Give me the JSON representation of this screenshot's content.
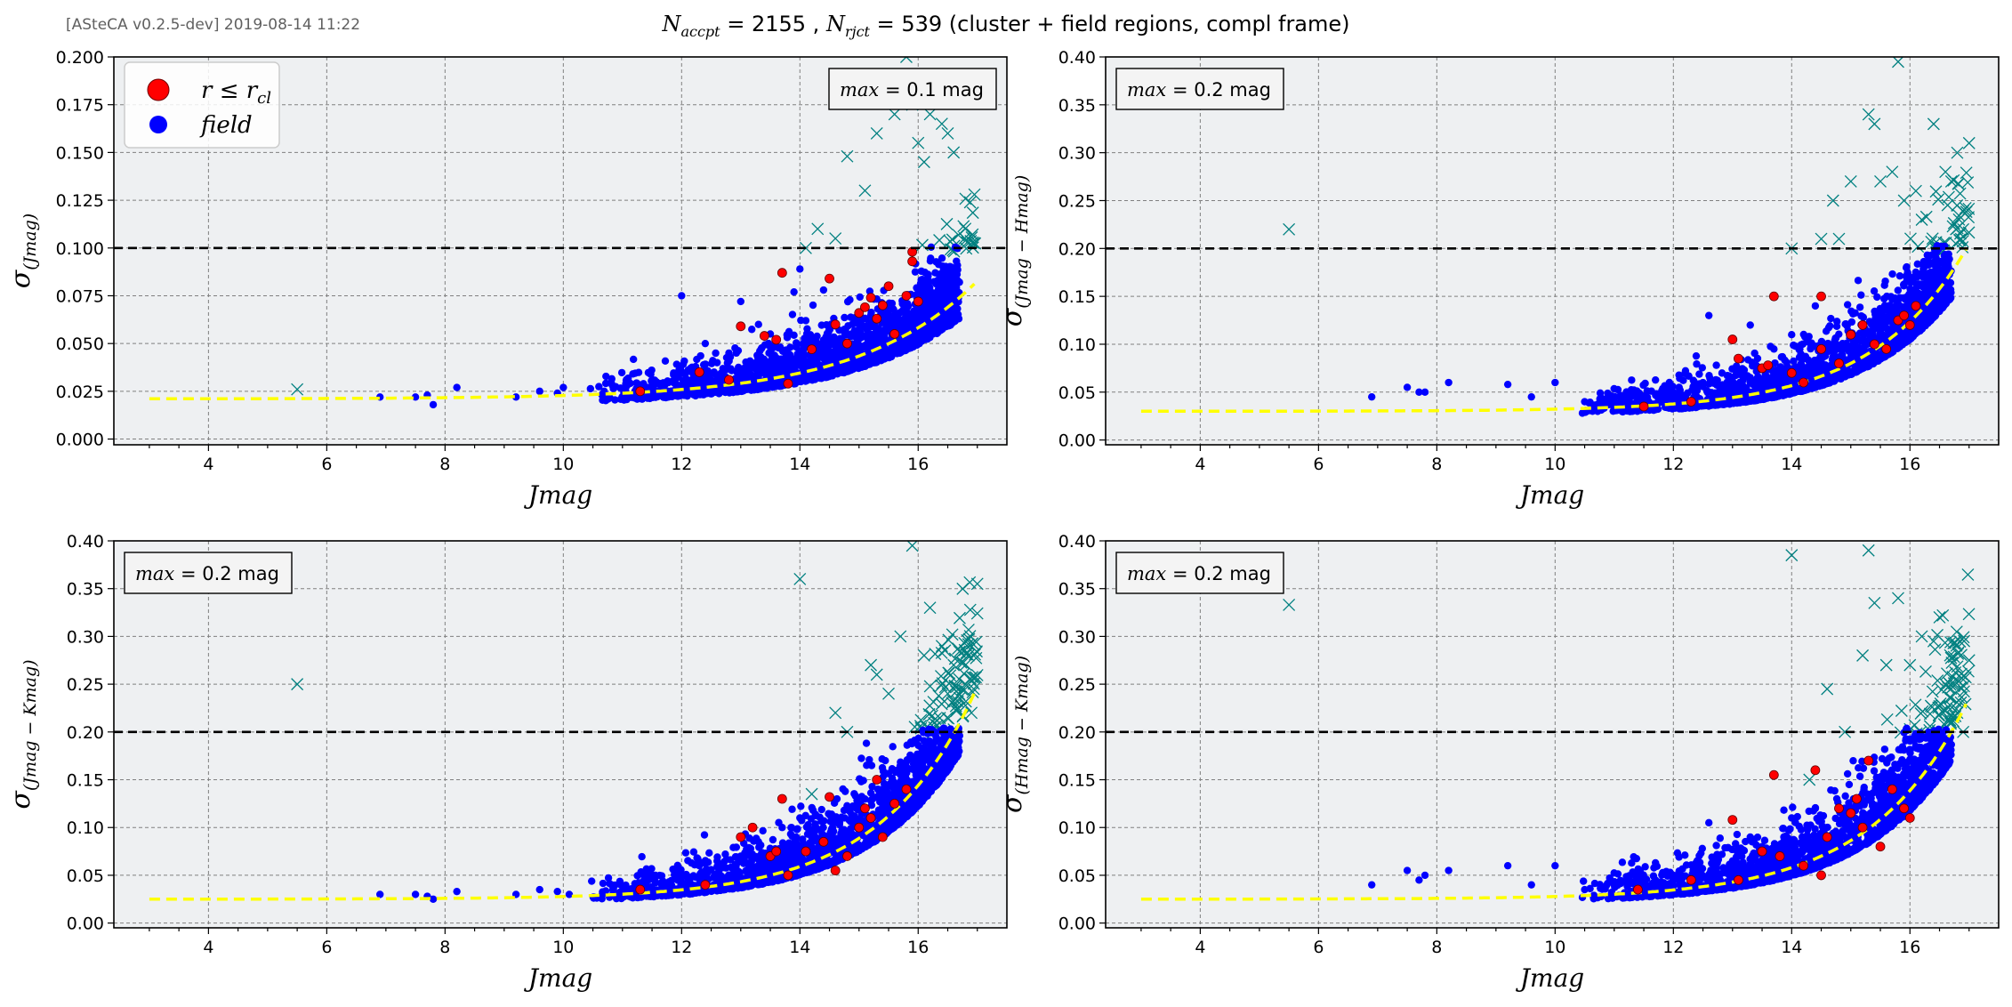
{
  "header": {
    "version": "[ASteCA v0.2.5-dev] 2019-08-14 11:22",
    "title": {
      "n_accpt_sym": "N",
      "n_accpt_sub": "accpt",
      "n_accpt_val": " = 2155 , ",
      "n_rjct_sym": "N",
      "n_rjct_sub": "rjct",
      "n_rjct_val": " = 539",
      "suffix": " (cluster + field regions, compl frame)"
    }
  },
  "legend": {
    "cluster_label": "r ≤ r",
    "cluster_sub": "cl",
    "field_label": "field"
  },
  "colors": {
    "cluster": "#ff0000",
    "field": "#0000ff",
    "rejected": "#008080",
    "fit_curve": "#ffff00",
    "max_line": "#000000",
    "panel_bg": "#eef0f2"
  },
  "chart_data": [
    {
      "type": "scatter",
      "xlabel": "Jmag",
      "ylabel_symbol": "σ",
      "ylabel_sub": "(Jmag)",
      "xlim": [
        2.4,
        17.5
      ],
      "ylim": [
        -0.003,
        0.2
      ],
      "xticks": [
        4,
        6,
        8,
        10,
        12,
        14,
        16
      ],
      "yticks": [
        0.0,
        0.025,
        0.05,
        0.075,
        0.1,
        0.125,
        0.15,
        0.175,
        0.2
      ],
      "ytick_labels": [
        "0.000",
        "0.025",
        "0.050",
        "0.075",
        "0.100",
        "0.125",
        "0.150",
        "0.175",
        "0.200"
      ],
      "grid": true,
      "max_box": {
        "var": "max",
        "text": " = 0.1 mag"
      },
      "max_line": 0.1,
      "fit": {
        "base": 0.021,
        "amp": 0.0018,
        "scale": 1.98,
        "x0": 10,
        "x_start": 3.0,
        "x_end": 17.0
      },
      "cluster_points": [
        [
          11.3,
          0.025
        ],
        [
          12.3,
          0.035
        ],
        [
          12.8,
          0.031
        ],
        [
          13.0,
          0.059
        ],
        [
          13.4,
          0.054
        ],
        [
          13.6,
          0.052
        ],
        [
          13.7,
          0.087
        ],
        [
          13.8,
          0.029
        ],
        [
          14.2,
          0.047
        ],
        [
          14.5,
          0.084
        ],
        [
          14.6,
          0.06
        ],
        [
          14.8,
          0.05
        ],
        [
          15.0,
          0.066
        ],
        [
          15.1,
          0.069
        ],
        [
          15.2,
          0.074
        ],
        [
          15.3,
          0.063
        ],
        [
          15.4,
          0.07
        ],
        [
          15.5,
          0.08
        ],
        [
          15.6,
          0.055
        ],
        [
          15.8,
          0.075
        ],
        [
          15.9,
          0.098
        ],
        [
          16.0,
          0.072
        ],
        [
          15.9,
          0.093
        ]
      ],
      "rejected_points": [
        [
          5.5,
          0.026
        ],
        [
          14.1,
          0.1
        ],
        [
          14.3,
          0.11
        ],
        [
          14.6,
          0.105
        ],
        [
          14.8,
          0.148
        ],
        [
          15.1,
          0.13
        ],
        [
          15.3,
          0.16
        ],
        [
          15.5,
          0.18
        ],
        [
          15.6,
          0.17
        ],
        [
          15.7,
          0.19
        ],
        [
          15.8,
          0.2
        ],
        [
          15.9,
          0.175
        ],
        [
          16.0,
          0.155
        ],
        [
          16.1,
          0.145
        ],
        [
          16.2,
          0.17
        ],
        [
          16.3,
          0.19
        ],
        [
          16.4,
          0.165
        ],
        [
          16.5,
          0.16
        ],
        [
          16.6,
          0.15
        ]
      ],
      "field_clouds": {
        "sigma": 0.0035,
        "x_from": 10.4,
        "x_to": 16.7
      },
      "field_sparse": [
        [
          6.9,
          0.022
        ],
        [
          7.5,
          0.022
        ],
        [
          7.7,
          0.023
        ],
        [
          7.8,
          0.018
        ],
        [
          8.2,
          0.027
        ],
        [
          9.2,
          0.022
        ],
        [
          9.6,
          0.025
        ],
        [
          9.9,
          0.024
        ],
        [
          10.0,
          0.027
        ]
      ],
      "field_scatter": [
        [
          12.0,
          0.075
        ],
        [
          12.4,
          0.05
        ],
        [
          13.0,
          0.072
        ],
        [
          13.3,
          0.06
        ],
        [
          13.9,
          0.077
        ],
        [
          14.0,
          0.089
        ],
        [
          14.4,
          0.078
        ],
        [
          14.1,
          0.062
        ],
        [
          13.5,
          0.055
        ],
        [
          12.8,
          0.045
        ],
        [
          12.6,
          0.04
        ]
      ]
    },
    {
      "type": "scatter",
      "xlabel": "Jmag",
      "ylabel_symbol": "σ",
      "ylabel_sub": "(Jmag − Hmag)",
      "xlim": [
        2.4,
        17.5
      ],
      "ylim": [
        -0.005,
        0.4
      ],
      "xticks": [
        4,
        6,
        8,
        10,
        12,
        14,
        16
      ],
      "yticks": [
        0.0,
        0.05,
        0.1,
        0.15,
        0.2,
        0.25,
        0.3,
        0.35,
        0.4
      ],
      "ytick_labels": [
        "0.00",
        "0.05",
        "0.10",
        "0.15",
        "0.20",
        "0.25",
        "0.30",
        "0.35",
        "0.40"
      ],
      "grid": true,
      "max_box": {
        "var": "max",
        "text": " = 0.2 mag"
      },
      "max_line": 0.2,
      "fit": {
        "base": 0.03,
        "amp": 0.0022,
        "scale": 1.6,
        "x0": 10,
        "x_start": 3.0,
        "x_end": 17.0
      },
      "cluster_points": [
        [
          11.5,
          0.035
        ],
        [
          12.3,
          0.04
        ],
        [
          13.0,
          0.105
        ],
        [
          13.1,
          0.085
        ],
        [
          13.5,
          0.075
        ],
        [
          13.6,
          0.078
        ],
        [
          13.7,
          0.15
        ],
        [
          14.0,
          0.07
        ],
        [
          14.2,
          0.06
        ],
        [
          14.5,
          0.15
        ],
        [
          14.5,
          0.095
        ],
        [
          14.8,
          0.08
        ],
        [
          15.0,
          0.11
        ],
        [
          15.2,
          0.12
        ],
        [
          15.4,
          0.1
        ],
        [
          15.6,
          0.095
        ],
        [
          15.8,
          0.125
        ],
        [
          15.9,
          0.13
        ],
        [
          16.0,
          0.12
        ],
        [
          16.1,
          0.14
        ]
      ],
      "rejected_points": [
        [
          5.5,
          0.22
        ],
        [
          14.0,
          0.2
        ],
        [
          14.5,
          0.21
        ],
        [
          14.7,
          0.25
        ],
        [
          14.8,
          0.21
        ],
        [
          15.0,
          0.27
        ],
        [
          15.3,
          0.34
        ],
        [
          15.4,
          0.33
        ],
        [
          15.5,
          0.27
        ],
        [
          15.7,
          0.28
        ],
        [
          15.8,
          0.395
        ],
        [
          15.9,
          0.25
        ],
        [
          16.1,
          0.26
        ],
        [
          16.2,
          0.23
        ],
        [
          16.4,
          0.33
        ],
        [
          16.6,
          0.28
        ],
        [
          16.7,
          0.27
        ],
        [
          16.8,
          0.3
        ],
        [
          17.0,
          0.31
        ],
        [
          16.9,
          0.22
        ]
      ],
      "field_clouds": {
        "sigma": 0.007,
        "x_from": 10.4,
        "x_to": 16.7
      },
      "field_sparse": [
        [
          6.9,
          0.045
        ],
        [
          7.5,
          0.055
        ],
        [
          7.7,
          0.05
        ],
        [
          7.8,
          0.05
        ],
        [
          8.2,
          0.06
        ],
        [
          9.2,
          0.058
        ],
        [
          9.6,
          0.045
        ],
        [
          10.0,
          0.06
        ],
        [
          10.5,
          0.04
        ],
        [
          11.0,
          0.045
        ],
        [
          11.5,
          0.038
        ]
      ],
      "field_scatter": [
        [
          12.6,
          0.13
        ],
        [
          13.3,
          0.12
        ],
        [
          13.7,
          0.095
        ],
        [
          14.0,
          0.11
        ],
        [
          14.4,
          0.14
        ],
        [
          14.2,
          0.085
        ],
        [
          13.0,
          0.065
        ],
        [
          12.5,
          0.06
        ],
        [
          12.0,
          0.05
        ]
      ]
    },
    {
      "type": "scatter",
      "xlabel": "Jmag",
      "ylabel_symbol": "σ",
      "ylabel_sub": "(Jmag − Kmag)",
      "xlim": [
        2.4,
        17.5
      ],
      "ylim": [
        -0.005,
        0.4
      ],
      "xticks": [
        4,
        6,
        8,
        10,
        12,
        14,
        16
      ],
      "yticks": [
        0.0,
        0.05,
        0.1,
        0.15,
        0.2,
        0.25,
        0.3,
        0.35,
        0.4
      ],
      "ytick_labels": [
        "0.00",
        "0.05",
        "0.10",
        "0.15",
        "0.20",
        "0.25",
        "0.30",
        "0.35",
        "0.40"
      ],
      "grid": true,
      "max_box": {
        "var": "max",
        "text": " = 0.2 mag"
      },
      "max_line": 0.2,
      "fit": {
        "base": 0.025,
        "amp": 0.0028,
        "scale": 1.6,
        "x0": 10,
        "x_start": 3.0,
        "x_end": 17.0
      },
      "cluster_points": [
        [
          11.3,
          0.035
        ],
        [
          12.4,
          0.04
        ],
        [
          13.0,
          0.09
        ],
        [
          13.2,
          0.1
        ],
        [
          13.5,
          0.07
        ],
        [
          13.6,
          0.075
        ],
        [
          13.7,
          0.13
        ],
        [
          13.8,
          0.05
        ],
        [
          14.1,
          0.075
        ],
        [
          14.4,
          0.085
        ],
        [
          14.5,
          0.132
        ],
        [
          14.6,
          0.055
        ],
        [
          14.8,
          0.07
        ],
        [
          15.0,
          0.1
        ],
        [
          15.1,
          0.12
        ],
        [
          15.2,
          0.11
        ],
        [
          15.3,
          0.15
        ],
        [
          15.4,
          0.09
        ],
        [
          15.6,
          0.125
        ],
        [
          15.8,
          0.14
        ]
      ],
      "rejected_points": [
        [
          5.5,
          0.25
        ],
        [
          14.0,
          0.36
        ],
        [
          14.2,
          0.135
        ],
        [
          14.6,
          0.22
        ],
        [
          14.8,
          0.2
        ],
        [
          15.2,
          0.27
        ],
        [
          15.3,
          0.26
        ],
        [
          15.5,
          0.24
        ],
        [
          15.7,
          0.3
        ],
        [
          15.9,
          0.395
        ],
        [
          16.1,
          0.28
        ],
        [
          16.2,
          0.33
        ],
        [
          16.4,
          0.29
        ],
        [
          16.6,
          0.27
        ],
        [
          16.8,
          0.25
        ],
        [
          17.0,
          0.355
        ],
        [
          16.9,
          0.22
        ],
        [
          16.5,
          0.24
        ]
      ],
      "field_clouds": {
        "sigma": 0.008,
        "x_from": 10.4,
        "x_to": 16.7
      },
      "field_sparse": [
        [
          6.9,
          0.03
        ],
        [
          7.5,
          0.03
        ],
        [
          7.7,
          0.028
        ],
        [
          7.8,
          0.025
        ],
        [
          8.2,
          0.033
        ],
        [
          9.2,
          0.03
        ],
        [
          9.6,
          0.035
        ],
        [
          9.9,
          0.033
        ],
        [
          10.1,
          0.03
        ]
      ],
      "field_scatter": [
        [
          12.6,
          0.065
        ],
        [
          13.0,
          0.07
        ],
        [
          13.3,
          0.085
        ],
        [
          13.7,
          0.1
        ],
        [
          14.0,
          0.11
        ],
        [
          14.2,
          0.09
        ],
        [
          12.0,
          0.05
        ],
        [
          12.3,
          0.06
        ]
      ]
    },
    {
      "type": "scatter",
      "xlabel": "Jmag",
      "ylabel_symbol": "σ",
      "ylabel_sub": "(Hmag − Kmag)",
      "xlim": [
        2.4,
        17.5
      ],
      "ylim": [
        -0.005,
        0.4
      ],
      "xticks": [
        4,
        6,
        8,
        10,
        12,
        14,
        16
      ],
      "yticks": [
        0.0,
        0.05,
        0.1,
        0.15,
        0.2,
        0.25,
        0.3,
        0.35,
        0.4
      ],
      "ytick_labels": [
        "0.00",
        "0.05",
        "0.10",
        "0.15",
        "0.20",
        "0.25",
        "0.30",
        "0.35",
        "0.40"
      ],
      "grid": true,
      "max_box": {
        "var": "max",
        "text": " = 0.2 mag"
      },
      "max_line": 0.2,
      "fit": {
        "base": 0.025,
        "amp": 0.0028,
        "scale": 1.62,
        "x0": 10,
        "x_start": 3.0,
        "x_end": 17.0
      },
      "cluster_points": [
        [
          11.4,
          0.035
        ],
        [
          12.3,
          0.045
        ],
        [
          13.0,
          0.108
        ],
        [
          13.1,
          0.045
        ],
        [
          13.5,
          0.075
        ],
        [
          13.7,
          0.155
        ],
        [
          13.8,
          0.07
        ],
        [
          14.2,
          0.06
        ],
        [
          14.4,
          0.16
        ],
        [
          14.5,
          0.05
        ],
        [
          14.6,
          0.09
        ],
        [
          14.8,
          0.12
        ],
        [
          15.0,
          0.115
        ],
        [
          15.1,
          0.13
        ],
        [
          15.2,
          0.1
        ],
        [
          15.3,
          0.17
        ],
        [
          15.5,
          0.08
        ],
        [
          15.7,
          0.14
        ],
        [
          15.9,
          0.12
        ],
        [
          16.0,
          0.11
        ]
      ],
      "rejected_points": [
        [
          5.5,
          0.333
        ],
        [
          14.0,
          0.385
        ],
        [
          14.3,
          0.15
        ],
        [
          14.6,
          0.245
        ],
        [
          14.9,
          0.2
        ],
        [
          15.2,
          0.28
        ],
        [
          15.3,
          0.39
        ],
        [
          15.4,
          0.335
        ],
        [
          15.6,
          0.27
        ],
        [
          15.8,
          0.34
        ],
        [
          16.0,
          0.27
        ],
        [
          16.2,
          0.3
        ],
        [
          16.4,
          0.295
        ],
        [
          16.5,
          0.32
        ],
        [
          16.6,
          0.25
        ],
        [
          16.8,
          0.22
        ],
        [
          17.0,
          0.275
        ],
        [
          16.9,
          0.2
        ]
      ],
      "field_clouds": {
        "sigma": 0.008,
        "x_from": 10.4,
        "x_to": 16.7
      },
      "field_sparse": [
        [
          6.9,
          0.04
        ],
        [
          7.5,
          0.055
        ],
        [
          7.7,
          0.045
        ],
        [
          7.8,
          0.05
        ],
        [
          8.2,
          0.055
        ],
        [
          9.2,
          0.06
        ],
        [
          9.6,
          0.04
        ],
        [
          10.0,
          0.06
        ],
        [
          10.5,
          0.035
        ],
        [
          11.0,
          0.04
        ]
      ],
      "field_scatter": [
        [
          12.6,
          0.105
        ],
        [
          13.3,
          0.09
        ],
        [
          13.5,
          0.08
        ],
        [
          14.0,
          0.11
        ],
        [
          14.4,
          0.12
        ],
        [
          13.0,
          0.065
        ],
        [
          12.4,
          0.05
        ],
        [
          12.0,
          0.05
        ]
      ]
    }
  ]
}
